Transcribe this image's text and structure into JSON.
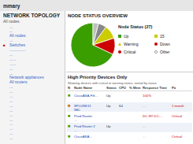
{
  "chart_data": {
    "type": "pie",
    "title": "mmary",
    "subtitle": "NODE STATUS OVERVIEW",
    "values": [
      68,
      12,
      10,
      6,
      4
    ],
    "colors": [
      "#3a9e00",
      "#cc0000",
      "#cccc00",
      "#888888",
      "#c0c0c0"
    ],
    "annotations": {
      "legend": {
        "title": "Node Status (27)",
        "entries": [
          {
            "text": "Up",
            "color": "#3a9e00",
            "marker": "square"
          },
          {
            "text": "15",
            "color": "#cccc00",
            "marker": "square"
          },
          {
            "text": "Warning",
            "color": "#cccc00",
            "marker": "triangle"
          },
          {
            "text": "Down",
            "color": "#cc0000",
            "marker": "circle"
          },
          {
            "text": "Critical",
            "color": "#cc0000",
            "marker": "circle"
          },
          {
            "text": "Other",
            "color": "#888888",
            "marker": "open-circle"
          }
        ]
      },
      "left": {
        "title": "NETWORK TOPOLOGY",
        "subtitle": "All nodes",
        "items": [
          {
            "text": "...",
            "color": "#3366cc"
          },
          {
            "text": "...",
            "color": "#3366cc"
          },
          {
            "text": "All nodes",
            "color": "#3366cc"
          },
          {
            "text": "...",
            "color": "#3366cc"
          },
          {
            "text": "Switches",
            "color": "#3366cc",
            "icon": {
              "text": "■",
              "color": "#cc0000"
            }
          },
          {
            "text": "...............",
            "color": "#3366cc"
          },
          {
            "text": "...",
            "color": "#3366cc"
          },
          {
            "text": "......",
            "color": "#3366cc"
          },
          {
            "text": "......",
            "color": "#3366cc"
          },
          {
            "text": "...",
            "color": "#3366cc"
          },
          {
            "text": "...",
            "color": "#3366cc"
          },
          {
            "text": "Network appliances",
            "color": "#3366cc"
          },
          {
            "text": "All routers",
            "color": "#3366cc"
          },
          {
            "text": "...",
            "color": "#3366cc"
          },
          {
            "text": "...",
            "color": "#3366cc"
          },
          {
            "text": "...",
            "color": "#3366cc"
          },
          {
            "text": "...",
            "color": "#3366cc"
          },
          {
            "text": "...",
            "color": "#3366cc"
          },
          {
            "text": "...",
            "color": "#3366cc"
          },
          {
            "text": "...",
            "color": "#3366cc"
          },
          {
            "text": "...",
            "color": "#3366cc"
          },
          {
            "text": "...",
            "color": "#3366cc"
          },
          {
            "text": "...",
            "color": "#3366cc"
          },
          {
            "text": "...",
            "color": "#3366cc"
          },
          {
            "text": "...",
            "color": "#3366cc"
          }
        ]
      },
      "table": {
        "title": "High Priority Devices Only",
        "subtitle": "Showing devices with critical or warning status, sorted by status",
        "columns": [
          "N",
          "Node Name",
          "Status",
          "CPU",
          "% Mem",
          "Response Time",
          "Pa"
        ],
        "rows": [
          {
            "color": "#3a9e00",
            "cells": [
              "■",
              [
                "CiscoASA-Filt..."
              ],
              "Up",
              null,
              null,
              "100%",
              null
            ]
          },
          {
            "color": "#cc6600",
            "cells": [
              "■",
              [
                "SPLUNK11",
                "IMC"
              ],
              "Up",
              "64",
              null,
              "...",
              "1 month"
            ]
          },
          {
            "color": "#3a9e00",
            "cells": [
              "■",
              [
                "Prod Router",
                "..."
              ],
              null,
              null,
              null,
              "DC-NT-DC-...",
              "Critical"
            ]
          },
          {
            "color": "#3a9e00",
            "cells": [
              "■",
              [
                "Prod Router 2",
                "..."
              ],
              "Up",
              null,
              null,
              "...",
              null
            ]
          },
          {
            "color": "#3a9e00",
            "cells": [
              "■",
              [
                "CiscoASA..."
              ],
              null,
              null,
              null,
              "...",
              "Critical"
            ]
          }
        ]
      }
    }
  }
}
